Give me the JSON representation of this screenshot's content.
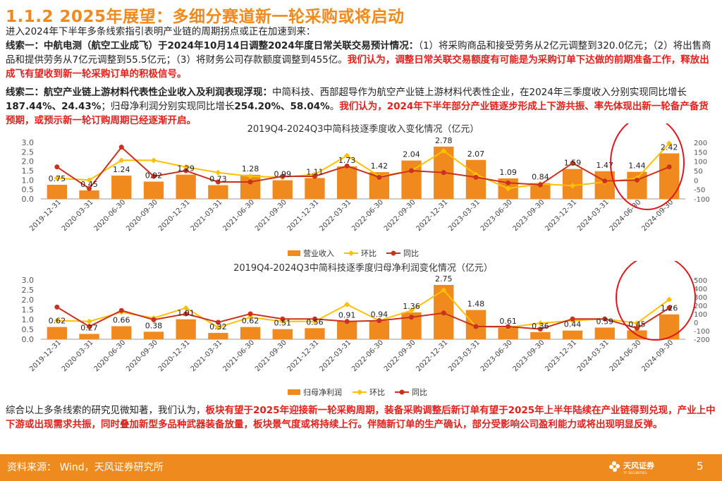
{
  "title": "1.1.2 2025年展望：多细分赛道新一轮采购或将启动",
  "subtitle": "进入2024年下半年多条线索指引表明产业链的周期拐点或正在加速到来：",
  "clue1": {
    "lead": "线索一：中航电测（航空工业成飞）于2024年10月14日调整2024年度日常关联交易预计情况：",
    "body": "（1）将采购商品和接受劳务从2亿元调整到320.0亿元；（2）将出售商品和提供劳务从7亿元调整到55.5亿元；（3）将财务公司存款额度调整到455亿。",
    "conclusion": "我们认为，调整日常关联交易额度有可能是为采购订单下达做的前期准备工作，释放出成飞有望收到新一轮采购订单的积极信号。"
  },
  "clue2": {
    "lead": "线索二：航空产业链上游材料代表性企业收入及利润表现浮现：",
    "body_a": "中简科技、西部超导作为航空产业链上游材料代表性企业，在2024年三季度收入分别实现同比增长",
    "growth_rev": "187.44%、24.43%",
    "body_b": "；归母净利润分别实现同比增长",
    "growth_profit": "254.20%、58.04%",
    "body_c": "。",
    "conclusion": "我们认为，2024年下半年部分产业链逐步形成上下游共振、率先体现出新一轮备产备货预期，或预示新一轮订购周期已经逐渐开启。"
  },
  "summary": {
    "lead": "综合以上多条线索的研究见微知著，我们认为，",
    "conclusion": "板块有望于2025年迎接新一轮采购周期，装备采购调整后新订单有望于2025年上半年陆续在产业链得到兑现，产业上中下游或出现需求共振，同时叠加新型多品种武器装备放量，板块景气度或将持续上行。伴随新订单的生产确认，部分受影响公司盈利能力或将出现明显反弹。"
  },
  "footer": {
    "source": "资料来源：   Wind，天风证券研究所",
    "logo_text": "天风证券",
    "logo_sub": "TF SECURITIES",
    "page": "5"
  },
  "colors": {
    "accent": "#EF8A1E",
    "bar": "#F08A1E",
    "line_qoq": "#FFC000",
    "line_yoy": "#C8321E",
    "red": "#E2211C",
    "highlight": "#E0161E"
  },
  "chart_data": [
    {
      "type": "bar",
      "title": "2019Q4-2024Q3中简科技逐季度收入变化情况（亿元）",
      "categories": [
        "2019-12-31",
        "2020-03-31",
        "2020-06-30",
        "2020-09-30",
        "2020-12-31",
        "2021-03-31",
        "2021-06-30",
        "2021-09-30",
        "2021-12-31",
        "2022-03-31",
        "2022-06-30",
        "2022-09-30",
        "2022-12-31",
        "2023-03-31",
        "2023-06-30",
        "2023-09-30",
        "2023-12-31",
        "2024-03-31",
        "2024-06-30",
        "2024-09-30"
      ],
      "series": [
        {
          "name": "营业收入",
          "axis": "left",
          "kind": "bar",
          "values": [
            0.75,
            0.45,
            1.24,
            0.92,
            1.29,
            0.73,
            1.28,
            0.99,
            1.11,
            1.73,
            1.42,
            2.04,
            2.78,
            2.07,
            1.09,
            0.84,
            1.59,
            1.47,
            1.44,
            2.42
          ]
        },
        {
          "name": "环比",
          "axis": "right",
          "kind": "line",
          "values": [
            10,
            0,
            105,
            105,
            70,
            40,
            20,
            15,
            30,
            130,
            20,
            50,
            155,
            30,
            -45,
            -20,
            -30,
            -10,
            10,
            195
          ]
        },
        {
          "name": "同比",
          "axis": "right",
          "kind": "line",
          "values": [
            70,
            -45,
            175,
            20,
            50,
            -10,
            -10,
            20,
            20,
            75,
            15,
            50,
            40,
            15,
            -15,
            -25,
            90,
            -5,
            0,
            70
          ]
        }
      ],
      "data_labels": [
        "0.75",
        "0.45",
        "1.24",
        "0.92",
        "1.29",
        "0.73",
        "1.28",
        "0.99",
        "1.11",
        "1.73",
        "1.42",
        "2.04",
        "2.78",
        "2.07",
        "1.09",
        "0.84",
        "1.59",
        "1.47",
        "1.44",
        "2.42"
      ],
      "ylim": [
        0,
        3.0
      ],
      "yticks": [
        "0.0",
        "0.5",
        "1.0",
        "1.5",
        "2.0",
        "2.5",
        "3.0"
      ],
      "y2lim": [
        -100,
        200
      ],
      "y2ticks": [
        "200",
        "150",
        "100",
        "50",
        "0",
        "-50",
        "-100"
      ],
      "legend": [
        "营业收入",
        "环比",
        "同比"
      ]
    },
    {
      "type": "bar",
      "title": "2019Q4-2024Q3中简科技逐季度归母净利润变化情况（亿元）",
      "categories": [
        "2019-12-31",
        "2020-03-31",
        "2020-06-30",
        "2020-09-30",
        "2020-12-31",
        "2021-03-31",
        "2021-06-30",
        "2021-09-30",
        "2021-12-31",
        "2022-03-31",
        "2022-06-30",
        "2022-09-30",
        "2022-12-31",
        "2023-03-31",
        "2023-06-30",
        "2023-09-30",
        "2023-12-31",
        "2024-03-31",
        "2024-06-30",
        "2024-09-30"
      ],
      "series": [
        {
          "name": "归母净利润",
          "axis": "left",
          "kind": "bar",
          "values": [
            0.62,
            0.27,
            0.66,
            0.38,
            1.01,
            0.32,
            0.62,
            0.51,
            0.56,
            0.91,
            0.94,
            1.36,
            2.75,
            1.48,
            0.61,
            0.36,
            0.44,
            0.59,
            0.45,
            1.26
          ]
        },
        {
          "name": "环比",
          "axis": "right",
          "kind": "line",
          "values": [
            20,
            10,
            120,
            50,
            170,
            -60,
            60,
            10,
            10,
            210,
            20,
            140,
            380,
            -50,
            -60,
            -10,
            20,
            40,
            -10,
            270
          ]
        },
        {
          "name": "同比",
          "axis": "right",
          "kind": "line",
          "values": [
            180,
            -50,
            140,
            30,
            100,
            0,
            100,
            40,
            40,
            10,
            20,
            60,
            110,
            -50,
            -50,
            -80,
            40,
            40,
            -70,
            170
          ]
        }
      ],
      "data_labels": [
        "0.62",
        "0.27",
        "0.66",
        "0.38",
        "1.01",
        "0.32",
        "0.62",
        "0.51",
        "0.56",
        "0.91",
        "0.94",
        "1.36",
        "2.75",
        "1.48",
        "0.61",
        "0.36",
        "0.44",
        "0.59",
        "0.45",
        "1.26"
      ],
      "ylim": [
        0,
        3.0
      ],
      "yticks": [
        "0.0",
        "0.5",
        "1.0",
        "1.5",
        "2.0",
        "2.5",
        "3.0"
      ],
      "y2lim": [
        -200,
        500
      ],
      "y2ticks": [
        "500",
        "400",
        "300",
        "200",
        "100",
        "0",
        "-100",
        "-200"
      ],
      "legend": [
        "归母净利润",
        "环比",
        "同比"
      ]
    }
  ]
}
